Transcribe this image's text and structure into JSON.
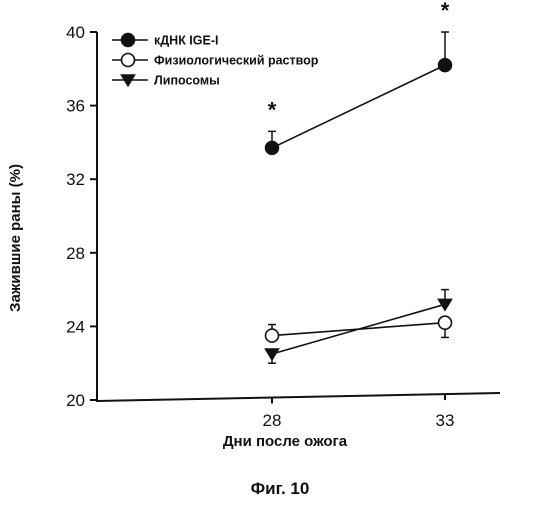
{
  "chart_data": {
    "type": "line",
    "x": [
      28,
      33
    ],
    "xlabel": "Дни после ожога",
    "ylabel": "Зажившие раны (%)",
    "ylim": [
      20,
      40
    ],
    "yticks": [
      20,
      24,
      28,
      32,
      36,
      40
    ],
    "xticks": [
      28,
      33
    ],
    "grid": false,
    "legend_position": "top-left",
    "series": [
      {
        "name": "кДНК IGE-I",
        "marker": "filled-circle",
        "values": [
          33.7,
          38.2
        ],
        "errors": [
          0.9,
          1.8
        ]
      },
      {
        "name": "Физиологический раствор",
        "marker": "open-circle",
        "values": [
          23.5,
          24.2
        ],
        "errors": [
          0.6,
          0.8
        ]
      },
      {
        "name": "Липосомы",
        "marker": "filled-triangle-down",
        "values": [
          22.5,
          25.2
        ],
        "errors": [
          0.5,
          0.8
        ]
      }
    ],
    "annotations": [
      {
        "text": "*",
        "x": 28,
        "series": 0
      },
      {
        "text": "*",
        "x": 33,
        "series": 0
      }
    ]
  },
  "caption": "Фиг. 10"
}
